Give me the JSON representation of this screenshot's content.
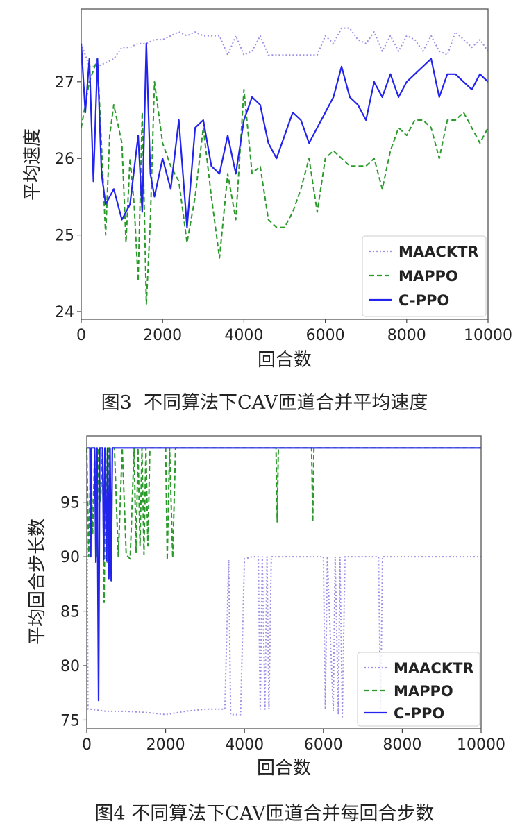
{
  "chart_data": [
    {
      "type": "line",
      "caption": "图3  不同算法下CAV匝道合并平均速度",
      "xlabel": "回合数",
      "ylabel": "平均速度",
      "xlim": [
        0,
        10000
      ],
      "ylim": [
        23.9,
        27.95
      ],
      "xticks": [
        0,
        2000,
        4000,
        6000,
        8000,
        10000
      ],
      "yticks": [
        24,
        25,
        26,
        27
      ],
      "grid": false,
      "legend_position": "bottom-right",
      "series": [
        {
          "name": "MAACKTR",
          "color": "#9b90e6",
          "style": "dotted",
          "points": [
            [
              0,
              27.5
            ],
            [
              200,
              27.2
            ],
            [
              400,
              27.2
            ],
            [
              600,
              27.25
            ],
            [
              800,
              27.3
            ],
            [
              1000,
              27.45
            ],
            [
              1200,
              27.45
            ],
            [
              1400,
              27.5
            ],
            [
              1600,
              27.5
            ],
            [
              1800,
              27.55
            ],
            [
              2000,
              27.55
            ],
            [
              2200,
              27.6
            ],
            [
              2400,
              27.65
            ],
            [
              2600,
              27.6
            ],
            [
              2800,
              27.65
            ],
            [
              3000,
              27.6
            ],
            [
              3200,
              27.6
            ],
            [
              3400,
              27.6
            ],
            [
              3600,
              27.35
            ],
            [
              3800,
              27.6
            ],
            [
              4000,
              27.35
            ],
            [
              4200,
              27.4
            ],
            [
              4400,
              27.6
            ],
            [
              4600,
              27.35
            ],
            [
              4800,
              27.35
            ],
            [
              5000,
              27.35
            ],
            [
              5200,
              27.35
            ],
            [
              5400,
              27.35
            ],
            [
              5600,
              27.35
            ],
            [
              5800,
              27.35
            ],
            [
              6000,
              27.6
            ],
            [
              6200,
              27.5
            ],
            [
              6400,
              27.7
            ],
            [
              6600,
              27.7
            ],
            [
              6800,
              27.55
            ],
            [
              7000,
              27.5
            ],
            [
              7200,
              27.65
            ],
            [
              7400,
              27.4
            ],
            [
              7600,
              27.6
            ],
            [
              7800,
              27.4
            ],
            [
              8000,
              27.6
            ],
            [
              8200,
              27.55
            ],
            [
              8400,
              27.4
            ],
            [
              8600,
              27.6
            ],
            [
              8800,
              27.4
            ],
            [
              9000,
              27.35
            ],
            [
              9200,
              27.65
            ],
            [
              9400,
              27.55
            ],
            [
              9600,
              27.45
            ],
            [
              9800,
              27.55
            ],
            [
              10000,
              27.4
            ]
          ]
        },
        {
          "name": "MAPPO",
          "color": "#2a9a2a",
          "style": "dashed",
          "points": [
            [
              0,
              26.4
            ],
            [
              200,
              27.0
            ],
            [
              400,
              27.3
            ],
            [
              600,
              25.0
            ],
            [
              700,
              26.3
            ],
            [
              800,
              26.7
            ],
            [
              1000,
              26.2
            ],
            [
              1100,
              24.9
            ],
            [
              1200,
              26.0
            ],
            [
              1300,
              25.4
            ],
            [
              1400,
              24.4
            ],
            [
              1500,
              26.6
            ],
            [
              1600,
              24.1
            ],
            [
              1700,
              25.2
            ],
            [
              1800,
              27.0
            ],
            [
              2000,
              26.2
            ],
            [
              2200,
              25.9
            ],
            [
              2400,
              25.7
            ],
            [
              2600,
              24.9
            ],
            [
              2800,
              25.5
            ],
            [
              3000,
              26.4
            ],
            [
              3200,
              25.5
            ],
            [
              3400,
              24.7
            ],
            [
              3600,
              25.8
            ],
            [
              3800,
              25.2
            ],
            [
              4000,
              26.9
            ],
            [
              4200,
              25.8
            ],
            [
              4400,
              25.9
            ],
            [
              4600,
              25.2
            ],
            [
              4800,
              25.1
            ],
            [
              5000,
              25.1
            ],
            [
              5200,
              25.3
            ],
            [
              5400,
              25.6
            ],
            [
              5600,
              26.0
            ],
            [
              5800,
              25.3
            ],
            [
              6000,
              26.0
            ],
            [
              6200,
              26.1
            ],
            [
              6400,
              26.0
            ],
            [
              6600,
              25.9
            ],
            [
              6800,
              25.9
            ],
            [
              7000,
              25.9
            ],
            [
              7200,
              26.0
            ],
            [
              7400,
              25.6
            ],
            [
              7600,
              26.1
            ],
            [
              7800,
              26.4
            ],
            [
              8000,
              26.3
            ],
            [
              8200,
              26.5
            ],
            [
              8400,
              26.5
            ],
            [
              8600,
              26.4
            ],
            [
              8800,
              26.0
            ],
            [
              9000,
              26.5
            ],
            [
              9200,
              26.5
            ],
            [
              9400,
              26.6
            ],
            [
              9600,
              26.4
            ],
            [
              9800,
              26.2
            ],
            [
              10000,
              26.4
            ]
          ]
        },
        {
          "name": "C-PPO",
          "color": "#2323ee",
          "style": "solid",
          "points": [
            [
              0,
              27.5
            ],
            [
              100,
              26.6
            ],
            [
              200,
              27.3
            ],
            [
              300,
              25.7
            ],
            [
              400,
              27.3
            ],
            [
              500,
              25.8
            ],
            [
              600,
              25.4
            ],
            [
              800,
              25.6
            ],
            [
              1000,
              25.2
            ],
            [
              1200,
              25.4
            ],
            [
              1400,
              26.3
            ],
            [
              1500,
              25.3
            ],
            [
              1600,
              27.5
            ],
            [
              1700,
              25.8
            ],
            [
              1800,
              25.5
            ],
            [
              2000,
              26.0
            ],
            [
              2200,
              25.6
            ],
            [
              2400,
              26.5
            ],
            [
              2600,
              25.1
            ],
            [
              2800,
              26.4
            ],
            [
              3000,
              26.5
            ],
            [
              3200,
              25.9
            ],
            [
              3400,
              25.8
            ],
            [
              3600,
              26.3
            ],
            [
              3800,
              25.8
            ],
            [
              4000,
              26.5
            ],
            [
              4200,
              26.8
            ],
            [
              4400,
              26.7
            ],
            [
              4600,
              26.2
            ],
            [
              4800,
              26.0
            ],
            [
              5000,
              26.3
            ],
            [
              5200,
              26.6
            ],
            [
              5400,
              26.5
            ],
            [
              5600,
              26.2
            ],
            [
              5800,
              26.4
            ],
            [
              6000,
              26.6
            ],
            [
              6200,
              26.8
            ],
            [
              6400,
              27.2
            ],
            [
              6600,
              26.8
            ],
            [
              6800,
              26.7
            ],
            [
              7000,
              26.5
            ],
            [
              7200,
              27.0
            ],
            [
              7400,
              26.8
            ],
            [
              7600,
              27.1
            ],
            [
              7800,
              26.8
            ],
            [
              8000,
              27.0
            ],
            [
              8200,
              27.1
            ],
            [
              8400,
              27.2
            ],
            [
              8600,
              27.3
            ],
            [
              8800,
              26.8
            ],
            [
              9000,
              27.1
            ],
            [
              9200,
              27.1
            ],
            [
              9400,
              27.0
            ],
            [
              9600,
              26.9
            ],
            [
              9800,
              27.1
            ],
            [
              10000,
              27.0
            ]
          ]
        }
      ]
    },
    {
      "type": "line",
      "caption": "图4 不同算法下CAV匝道合并每回合步数",
      "xlabel": "回合数",
      "ylabel": "平均回合步长数",
      "xlim": [
        0,
        10000
      ],
      "ylim": [
        74.2,
        101.1
      ],
      "xticks": [
        0,
        2000,
        4000,
        6000,
        8000,
        10000
      ],
      "yticks": [
        75,
        80,
        85,
        90,
        95
      ],
      "grid": false,
      "legend_position": "bottom-right",
      "series": [
        {
          "name": "MAACKTR",
          "color": "#9b90e6",
          "style": "dotted",
          "points": [
            [
              0,
              100
            ],
            [
              30,
              76
            ],
            [
              100,
              76
            ],
            [
              500,
              75.8
            ],
            [
              1000,
              75.8
            ],
            [
              1500,
              75.7
            ],
            [
              2000,
              75.5
            ],
            [
              2500,
              75.8
            ],
            [
              3000,
              76
            ],
            [
              3500,
              76
            ],
            [
              3600,
              89.7
            ],
            [
              3650,
              75.5
            ],
            [
              3900,
              75.5
            ],
            [
              4000,
              89.8
            ],
            [
              4200,
              90
            ],
            [
              4350,
              90
            ],
            [
              4400,
              76
            ],
            [
              4450,
              90
            ],
            [
              4520,
              76
            ],
            [
              4570,
              90
            ],
            [
              4620,
              76
            ],
            [
              4680,
              90
            ],
            [
              5000,
              90
            ],
            [
              5500,
              90
            ],
            [
              6000,
              90
            ],
            [
              6050,
              76
            ],
            [
              6100,
              90
            ],
            [
              6250,
              75.8
            ],
            [
              6300,
              90
            ],
            [
              6380,
              75.5
            ],
            [
              6420,
              90
            ],
            [
              6480,
              75.3
            ],
            [
              6550,
              90
            ],
            [
              7000,
              90
            ],
            [
              7400,
              90
            ],
            [
              7450,
              76
            ],
            [
              7500,
              90
            ],
            [
              8000,
              90
            ],
            [
              9000,
              90
            ],
            [
              10000,
              90
            ]
          ]
        },
        {
          "name": "MAPPO",
          "color": "#2a9a2a",
          "style": "dashed",
          "points": [
            [
              0,
              100
            ],
            [
              50,
              90
            ],
            [
              100,
              100
            ],
            [
              150,
              92
            ],
            [
              200,
              100
            ],
            [
              250,
              90
            ],
            [
              300,
              100
            ],
            [
              350,
              95
            ],
            [
              400,
              100
            ],
            [
              440,
              85.8
            ],
            [
              480,
              100
            ],
            [
              520,
              89.5
            ],
            [
              560,
              100
            ],
            [
              700,
              100
            ],
            [
              800,
              90
            ],
            [
              900,
              100
            ],
            [
              1000,
              90.2
            ],
            [
              1100,
              89.8
            ],
            [
              1200,
              100
            ],
            [
              1250,
              90.3
            ],
            [
              1300,
              100
            ],
            [
              1350,
              91
            ],
            [
              1400,
              100
            ],
            [
              1450,
              90.2
            ],
            [
              1500,
              100
            ],
            [
              1550,
              91
            ],
            [
              1600,
              100
            ],
            [
              2000,
              100
            ],
            [
              2040,
              89.7
            ],
            [
              2100,
              100
            ],
            [
              2180,
              89.9
            ],
            [
              2250,
              100
            ],
            [
              4800,
              100
            ],
            [
              4830,
              93.2
            ],
            [
              4860,
              100
            ],
            [
              5700,
              100
            ],
            [
              5730,
              93.2
            ],
            [
              5760,
              100
            ],
            [
              10000,
              100
            ]
          ]
        },
        {
          "name": "C-PPO",
          "color": "#2323ee",
          "style": "solid",
          "points": [
            [
              0,
              100
            ],
            [
              80,
              100
            ],
            [
              100,
              90
            ],
            [
              120,
              100
            ],
            [
              200,
              100
            ],
            [
              230,
              89.5
            ],
            [
              260,
              100
            ],
            [
              300,
              76.8
            ],
            [
              330,
              100
            ],
            [
              400,
              100
            ],
            [
              430,
              89.7
            ],
            [
              460,
              100
            ],
            [
              500,
              89.6
            ],
            [
              530,
              100
            ],
            [
              560,
              88
            ],
            [
              590,
              100
            ],
            [
              620,
              87.8
            ],
            [
              650,
              100
            ],
            [
              10000,
              100
            ]
          ]
        }
      ]
    }
  ]
}
